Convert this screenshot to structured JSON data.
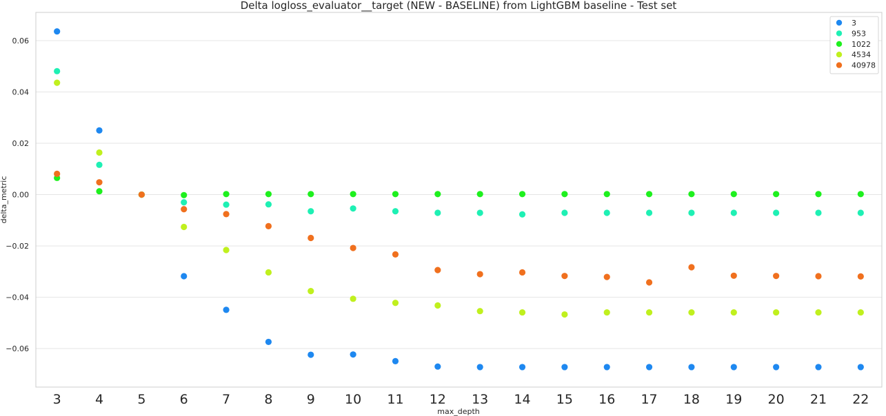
{
  "chart_data": {
    "type": "scatter",
    "title": "Delta logloss_evaluator__target (NEW - BASELINE) from LightGBM baseline - Test set",
    "xlabel": "max_depth",
    "ylabel": "delta_metric",
    "categories": [
      "3",
      "4",
      "5",
      "6",
      "7",
      "8",
      "9",
      "10",
      "11",
      "12",
      "13",
      "14",
      "15",
      "16",
      "17",
      "18",
      "19",
      "20",
      "21",
      "22"
    ],
    "ylim": [
      -0.075,
      0.071
    ],
    "yticks": [
      0.06,
      0.04,
      0.02,
      0.0,
      -0.02,
      -0.04,
      -0.06
    ],
    "ytick_labels": [
      "0.06",
      "0.04",
      "0.02",
      "0.00",
      "−0.02",
      "−0.04",
      "−0.06"
    ],
    "grid": true,
    "legend_position": "top-right",
    "series": [
      {
        "name": "3",
        "color": "#1e88f0",
        "values": [
          0.0636,
          0.025,
          0.0,
          -0.0318,
          -0.0449,
          -0.0574,
          -0.0624,
          -0.0623,
          -0.0649,
          -0.067,
          -0.0672,
          -0.0672,
          -0.0672,
          -0.0672,
          -0.0672,
          -0.0672,
          -0.0672,
          -0.0672,
          -0.0672,
          -0.0672
        ]
      },
      {
        "name": "953",
        "color": "#1ef0b4",
        "values": [
          0.0481,
          0.0116,
          0.0,
          -0.003,
          -0.0039,
          -0.0038,
          -0.0065,
          -0.0054,
          -0.0065,
          -0.0071,
          -0.0071,
          -0.0077,
          -0.0071,
          -0.0071,
          -0.0071,
          -0.0071,
          -0.0071,
          -0.0071,
          -0.0071,
          -0.0071
        ]
      },
      {
        "name": "1022",
        "color": "#1ef01e",
        "values": [
          0.0065,
          0.0013,
          0.0,
          -0.0002,
          0.0002,
          0.0002,
          0.0002,
          0.0002,
          0.0002,
          0.0002,
          0.0002,
          0.0002,
          0.0002,
          0.0002,
          0.0002,
          0.0002,
          0.0002,
          0.0002,
          0.0002,
          0.0002
        ]
      },
      {
        "name": "4534",
        "color": "#c0f01e",
        "values": [
          0.0436,
          0.0164,
          0.0,
          -0.0126,
          -0.0216,
          -0.0303,
          -0.0376,
          -0.0406,
          -0.0422,
          -0.0432,
          -0.0454,
          -0.0459,
          -0.0467,
          -0.0459,
          -0.0459,
          -0.0459,
          -0.0459,
          -0.0459,
          -0.0459,
          -0.0459
        ]
      },
      {
        "name": "40978",
        "color": "#f0701e",
        "values": [
          0.0081,
          0.0048,
          0.0,
          -0.0057,
          -0.0076,
          -0.0123,
          -0.0169,
          -0.0208,
          -0.0233,
          -0.0294,
          -0.031,
          -0.0303,
          -0.0317,
          -0.0321,
          -0.0342,
          -0.0283,
          -0.0316,
          -0.0317,
          -0.0318,
          -0.0319
        ]
      }
    ]
  }
}
